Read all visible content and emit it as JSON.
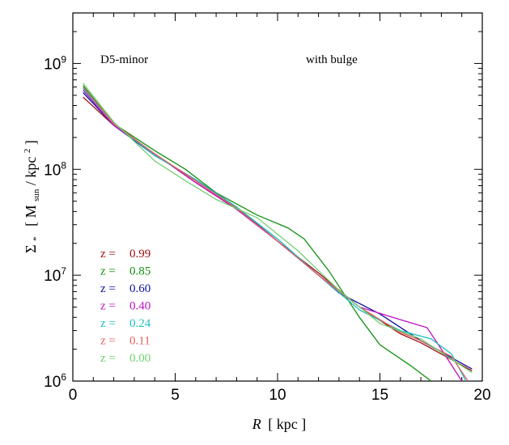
{
  "chart_data": {
    "type": "line",
    "xlabel_var": "R",
    "xlabel_unit": "[ kpc ]",
    "ylabel_var": "Σ",
    "ylabel_sub": "*",
    "ylabel_unit_open": "[ M",
    "ylabel_unit_sub": "sun",
    "ylabel_unit_mid": " / kpc",
    "ylabel_unit_sup": "2",
    "ylabel_unit_close": " ]",
    "xlim": [
      0,
      20
    ],
    "ylim": [
      1000000,
      3000000000
    ],
    "yscale": "log",
    "x_ticks": [
      "0",
      "5",
      "10",
      "15",
      "20"
    ],
    "y_tick_labels": [
      {
        "base": "10",
        "exp": "6"
      },
      {
        "base": "10",
        "exp": "7"
      },
      {
        "base": "10",
        "exp": "8"
      },
      {
        "base": "10",
        "exp": "9"
      }
    ],
    "annotations": {
      "left": "D5-minor",
      "right": "with bulge"
    },
    "legend_prefix": "z =",
    "series": [
      {
        "name": "0.99",
        "color": "#a01010",
        "x": [
          0.5,
          2,
          4,
          6,
          8,
          10,
          12,
          14,
          16,
          17,
          18,
          19.5
        ],
        "y": [
          480000000,
          260000000,
          140000000,
          75000000,
          42000000,
          21000000,
          10500000,
          5000000,
          2800000,
          2300000,
          1800000,
          1250000
        ]
      },
      {
        "name": "0.85",
        "color": "#109010",
        "x": [
          0.5,
          2,
          4,
          5.5,
          7,
          9,
          10.5,
          11.3,
          12.5,
          14,
          15,
          16.5,
          17.5
        ],
        "y": [
          620000000,
          270000000,
          150000000,
          100000000,
          60000000,
          37000000,
          28000000,
          22000000,
          11000000,
          4000000,
          2200000,
          1400000,
          1000000
        ]
      },
      {
        "name": "0.60",
        "color": "#1010a0",
        "x": [
          0.5,
          2,
          4,
          6,
          8,
          10,
          12,
          13,
          15,
          17,
          19.5
        ],
        "y": [
          530000000,
          260000000,
          135000000,
          80000000,
          44000000,
          21000000,
          10000000,
          6800000,
          4300000,
          2400000,
          1300000
        ]
      },
      {
        "name": "0.40",
        "color": "#c010c0",
        "x": [
          0.5,
          2,
          4,
          6,
          8,
          10,
          12,
          14,
          16,
          17.3,
          18,
          19
        ],
        "y": [
          560000000,
          260000000,
          140000000,
          75000000,
          42000000,
          21000000,
          10000000,
          5000000,
          3800000,
          3200000,
          2000000,
          1000000
        ]
      },
      {
        "name": "0.24",
        "color": "#20c0c0",
        "x": [
          0.5,
          2,
          4,
          6,
          8,
          10,
          12,
          14,
          16,
          17.5,
          18.5,
          19.2
        ],
        "y": [
          580000000,
          270000000,
          135000000,
          80000000,
          44000000,
          22000000,
          10000000,
          4700000,
          3000000,
          2500000,
          1800000,
          1000000
        ]
      },
      {
        "name": "0.11",
        "color": "#e06060",
        "x": [
          0.5,
          2,
          4,
          6,
          8,
          10,
          12,
          14,
          16,
          17,
          18.5,
          19.3
        ],
        "y": [
          600000000,
          270000000,
          140000000,
          78000000,
          43000000,
          21000000,
          10000000,
          5000000,
          2900000,
          2400000,
          1700000,
          1000000
        ]
      },
      {
        "name": "0.00",
        "color": "#70d070",
        "x": [
          0.5,
          2,
          4,
          5.5,
          7,
          9,
          11,
          13,
          15,
          17,
          19.5
        ],
        "y": [
          650000000,
          280000000,
          120000000,
          78000000,
          52000000,
          35000000,
          17000000,
          7200000,
          3500000,
          2500000,
          1200000
        ]
      }
    ]
  }
}
